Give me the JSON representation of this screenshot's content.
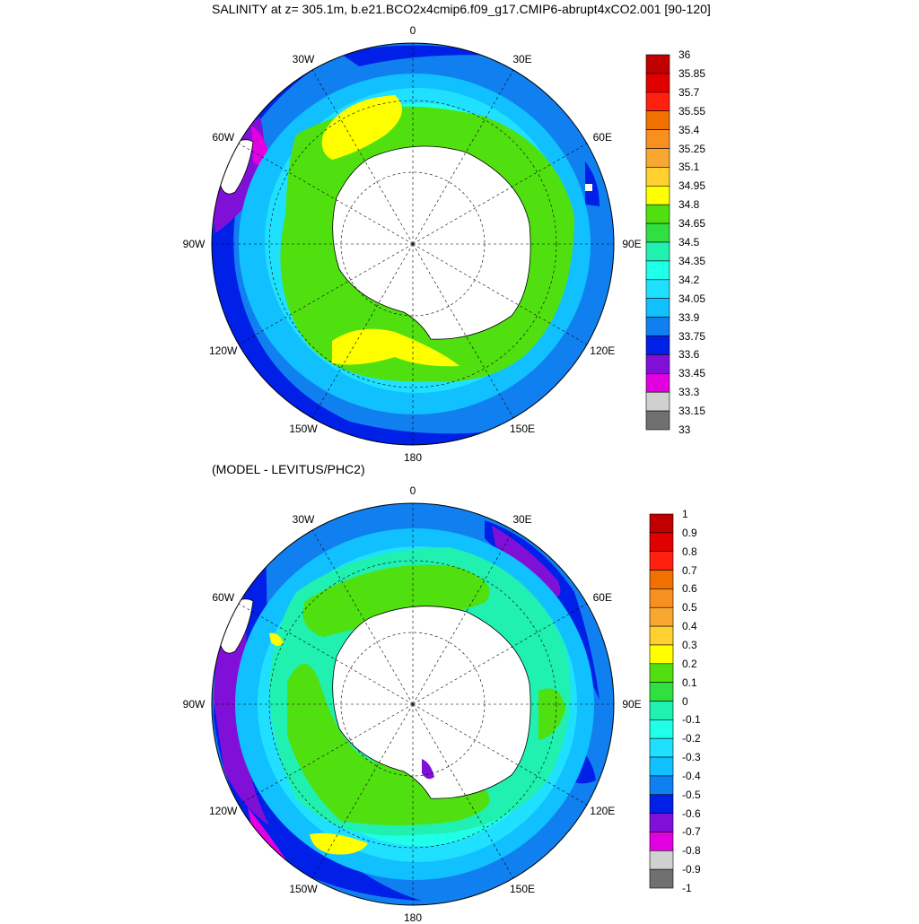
{
  "top_panel": {
    "title": "SALINITY at z= 305.1m, b.e21.BCO2x4cmip6.f09_g17.CMIP6-abrupt4xCO2.001 [90-120]",
    "longitude_labels": [
      "0",
      "30E",
      "60E",
      "90E",
      "120E",
      "150E",
      "180",
      "150W",
      "120W",
      "90W",
      "60W",
      "30W"
    ],
    "colorbar": {
      "levels": [
        "36",
        "35.85",
        "35.7",
        "35.55",
        "35.4",
        "35.25",
        "35.1",
        "34.95",
        "34.8",
        "34.65",
        "34.5",
        "34.35",
        "34.2",
        "34.05",
        "33.9",
        "33.75",
        "33.6",
        "33.45",
        "33.3",
        "33.15",
        "33"
      ],
      "colors": [
        "#c00000",
        "#e00000",
        "#ff2010",
        "#f07000",
        "#f89020",
        "#f8a830",
        "#ffd030",
        "#ffff00",
        "#50e010",
        "#30e040",
        "#20f0b0",
        "#20ffe8",
        "#20e0ff",
        "#10c0ff",
        "#1080f0",
        "#0020e8",
        "#8010d8",
        "#e000e0",
        "#d0d0d0",
        "#707070"
      ]
    }
  },
  "bottom_panel": {
    "title": "(MODEL - LEVITUS/PHC2)",
    "longitude_labels": [
      "0",
      "30E",
      "60E",
      "90E",
      "120E",
      "150E",
      "180",
      "150W",
      "120W",
      "90W",
      "60W",
      "30W"
    ],
    "colorbar": {
      "levels": [
        "1",
        "0.9",
        "0.8",
        "0.7",
        "0.6",
        "0.5",
        "0.4",
        "0.3",
        "0.2",
        "0.1",
        "0",
        "-0.1",
        "-0.2",
        "-0.3",
        "-0.4",
        "-0.5",
        "-0.6",
        "-0.7",
        "-0.8",
        "-0.9",
        "-1"
      ],
      "colors": [
        "#c00000",
        "#e00000",
        "#ff2010",
        "#f07000",
        "#f89020",
        "#f8a830",
        "#ffd030",
        "#ffff00",
        "#50e010",
        "#30e040",
        "#20f0b0",
        "#20ffe8",
        "#20e0ff",
        "#10c0ff",
        "#1080f0",
        "#0020e8",
        "#8010d8",
        "#e000e0",
        "#d0d0d0",
        "#707070"
      ]
    }
  }
}
